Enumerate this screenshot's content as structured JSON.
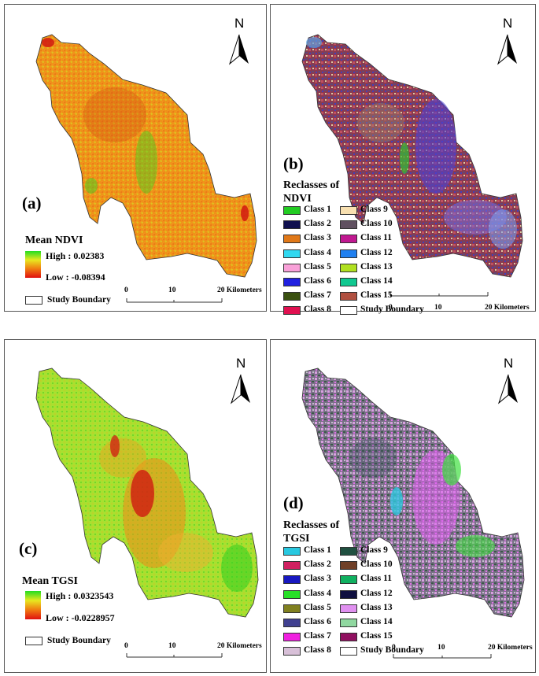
{
  "panels": {
    "a": {
      "letter": "(a)",
      "legend_title": "Mean NDVI",
      "high": "High : 0.02383",
      "low": "Low : -0.08394",
      "boundary": "Study Boundary",
      "ramp_colors": [
        "#22dd22",
        "#e8e820",
        "#f07a10",
        "#e01010"
      ]
    },
    "b": {
      "letter": "(b)",
      "legend_title_1": "Reclasses of",
      "legend_title_2": "NDVI",
      "classes": [
        {
          "label": "Class 1",
          "color": "#22cc22"
        },
        {
          "label": "Class 2",
          "color": "#101050"
        },
        {
          "label": "Class 3",
          "color": "#e07818"
        },
        {
          "label": "Class 4",
          "color": "#30d8f0"
        },
        {
          "label": "Class 5",
          "color": "#f8a0d8"
        },
        {
          "label": "Class 6",
          "color": "#2020e0"
        },
        {
          "label": "Class 7",
          "color": "#3a5010"
        },
        {
          "label": "Class 8",
          "color": "#e01050"
        },
        {
          "label": "Class 9",
          "color": "#f8e0b0"
        },
        {
          "label": "Class 10",
          "color": "#605060"
        },
        {
          "label": "Class 11",
          "color": "#c01890"
        },
        {
          "label": "Class 12",
          "color": "#2080f0"
        },
        {
          "label": "Class 13",
          "color": "#b0e020"
        },
        {
          "label": "Class 14",
          "color": "#10c890"
        },
        {
          "label": "Class 15",
          "color": "#b05040"
        }
      ],
      "boundary": "Study Boundary"
    },
    "c": {
      "letter": "(c)",
      "legend_title": "Mean TGSI",
      "high": "High : 0.0323543",
      "low": "Low : -0.0228957",
      "boundary": "Study Boundary",
      "ramp_colors": [
        "#22dd22",
        "#e8e820",
        "#f07a10",
        "#e01010"
      ]
    },
    "d": {
      "letter": "(d)",
      "legend_title_1": "Reclasses of",
      "legend_title_2": "TGSI",
      "classes": [
        {
          "label": "Class 1",
          "color": "#28c8e0"
        },
        {
          "label": "Class 2",
          "color": "#d02060"
        },
        {
          "label": "Class 3",
          "color": "#1818c0"
        },
        {
          "label": "Class 4",
          "color": "#28e028"
        },
        {
          "label": "Class 5",
          "color": "#808020"
        },
        {
          "label": "Class 6",
          "color": "#404090"
        },
        {
          "label": "Class 7",
          "color": "#f020e0"
        },
        {
          "label": "Class 8",
          "color": "#d8c0d8"
        },
        {
          "label": "Class 9",
          "color": "#205040"
        },
        {
          "label": "Class 10",
          "color": "#704028"
        },
        {
          "label": "Class 11",
          "color": "#10b060"
        },
        {
          "label": "Class 12",
          "color": "#101040"
        },
        {
          "label": "Class 13",
          "color": "#e090f0"
        },
        {
          "label": "Class 14",
          "color": "#90d8a0"
        },
        {
          "label": "Class 15",
          "color": "#901060"
        }
      ],
      "boundary": "Study Boundary"
    }
  },
  "north": "N",
  "scale": {
    "t0": "0",
    "t1": "10",
    "t2": "20 Kilometers"
  }
}
